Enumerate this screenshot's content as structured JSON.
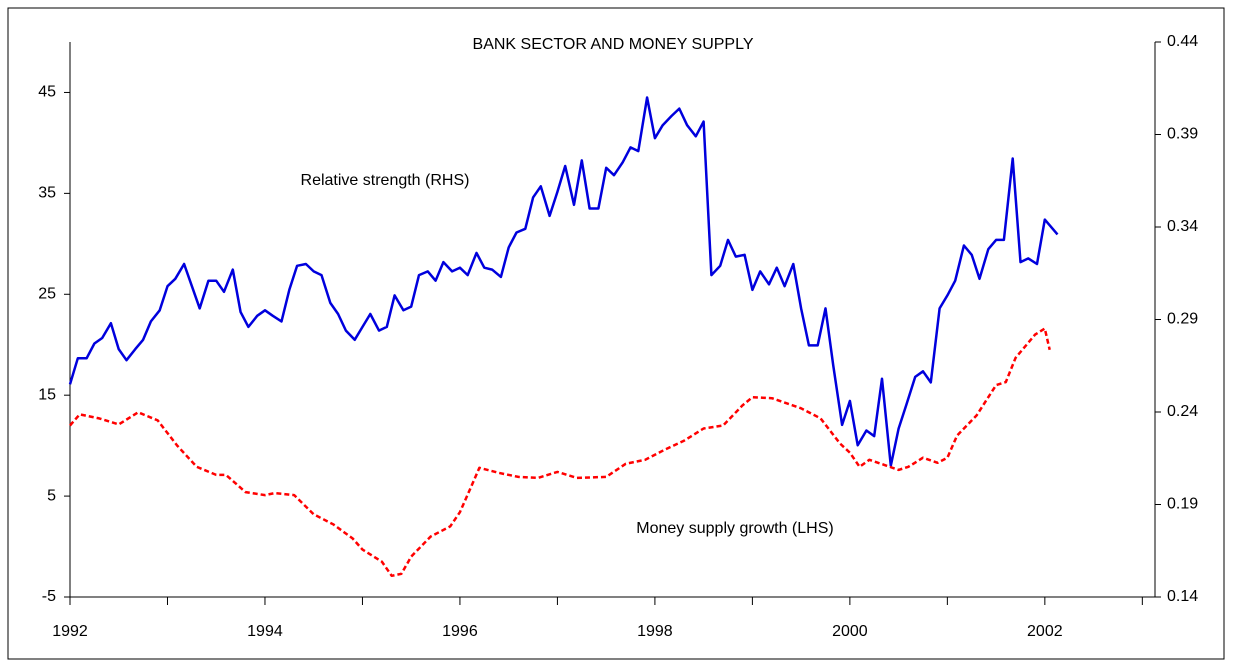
{
  "chart_data": {
    "type": "line",
    "title": "BANK SECTOR AND MONEY SUPPLY",
    "xlim": [
      1992,
      2003.13
    ],
    "xticks": [
      1992,
      1993,
      1994,
      1995,
      1996,
      1997,
      1998,
      1999,
      2000,
      2001,
      2002,
      2003
    ],
    "xticklabels": [
      1992,
      1994,
      1996,
      1998,
      2000,
      2002
    ],
    "ylim": [
      -5,
      50
    ],
    "yticks": [
      -5,
      5,
      15,
      25,
      35,
      45
    ],
    "y2lim": [
      0.14,
      0.44
    ],
    "y2ticks": [
      0.14,
      0.19,
      0.24,
      0.29,
      0.34,
      0.39,
      0.44
    ],
    "series": [
      {
        "name": "Relative strength (RHS)",
        "color": "#0000dd",
        "axis": "y2",
        "x": [
          1992.0,
          1992.08,
          1992.17,
          1992.25,
          1992.33,
          1992.42,
          1992.5,
          1992.58,
          1992.67,
          1992.75,
          1992.83,
          1992.92,
          1993.0,
          1993.08,
          1993.17,
          1993.25,
          1993.33,
          1993.42,
          1993.5,
          1993.58,
          1993.67,
          1993.75,
          1993.83,
          1993.92,
          1994.0,
          1994.08,
          1994.17,
          1994.25,
          1994.33,
          1994.42,
          1994.5,
          1994.58,
          1994.67,
          1994.75,
          1994.83,
          1994.92,
          1995.0,
          1995.08,
          1995.17,
          1995.25,
          1995.33,
          1995.42,
          1995.5,
          1995.58,
          1995.67,
          1995.75,
          1995.83,
          1995.92,
          1996.0,
          1996.08,
          1996.17,
          1996.25,
          1996.33,
          1996.42,
          1996.5,
          1996.58,
          1996.67,
          1996.75,
          1996.83,
          1996.92,
          1997.0,
          1997.08,
          1997.17,
          1997.25,
          1997.33,
          1997.42,
          1997.5,
          1997.58,
          1997.67,
          1997.75,
          1997.83,
          1997.92,
          1998.0,
          1998.08,
          1998.17,
          1998.25,
          1998.33,
          1998.42,
          1998.5,
          1998.58,
          1998.67,
          1998.75,
          1998.83,
          1998.92,
          1999.0,
          1999.08,
          1999.17,
          1999.25,
          1999.33,
          1999.42,
          1999.5,
          1999.58,
          1999.67,
          1999.75,
          1999.83,
          1999.92,
          2000.0,
          2000.08,
          2000.17,
          2000.25,
          2000.33,
          2000.42,
          2000.5,
          2000.58,
          2000.67,
          2000.75,
          2000.83,
          2000.92,
          2001.0,
          2001.08,
          2001.17,
          2001.25,
          2001.33,
          2001.42,
          2001.5,
          2001.58,
          2001.67,
          2001.75,
          2001.83,
          2001.92,
          2002.0,
          2002.13
        ],
        "values": [
          0.255,
          0.269,
          0.269,
          0.277,
          0.28,
          0.288,
          0.274,
          0.268,
          0.274,
          0.279,
          0.289,
          0.295,
          0.308,
          0.312,
          0.32,
          0.308,
          0.296,
          0.311,
          0.311,
          0.305,
          0.317,
          0.294,
          0.286,
          0.292,
          0.295,
          0.292,
          0.289,
          0.306,
          0.319,
          0.32,
          0.316,
          0.314,
          0.299,
          0.293,
          0.284,
          0.279,
          0.286,
          0.293,
          0.284,
          0.286,
          0.303,
          0.295,
          0.297,
          0.314,
          0.316,
          0.311,
          0.321,
          0.316,
          0.318,
          0.314,
          0.326,
          0.318,
          0.317,
          0.313,
          0.329,
          0.337,
          0.339,
          0.356,
          0.362,
          0.346,
          0.359,
          0.373,
          0.352,
          0.376,
          0.35,
          0.35,
          0.372,
          0.368,
          0.375,
          0.383,
          0.381,
          0.41,
          0.388,
          0.395,
          0.4,
          0.404,
          0.395,
          0.389,
          0.397,
          0.314,
          0.319,
          0.333,
          0.324,
          0.325,
          0.306,
          0.316,
          0.309,
          0.318,
          0.308,
          0.32,
          0.296,
          0.276,
          0.276,
          0.296,
          0.265,
          0.233,
          0.246,
          0.222,
          0.23,
          0.227,
          0.258,
          0.211,
          0.231,
          0.244,
          0.259,
          0.262,
          0.256,
          0.296,
          0.303,
          0.311,
          0.33,
          0.325,
          0.312,
          0.328,
          0.333,
          0.333,
          0.377,
          0.321,
          0.323,
          0.32,
          0.344,
          0.336
        ]
      },
      {
        "name": "Money supply growth (LHS)",
        "color": "#ff0000",
        "axis": "y",
        "x": [
          1992.0,
          1992.1,
          1992.3,
          1992.5,
          1992.7,
          1992.9,
          1993.1,
          1993.3,
          1993.5,
          1993.6,
          1993.8,
          1994.0,
          1994.1,
          1994.3,
          1994.5,
          1994.7,
          1994.9,
          1995.0,
          1995.2,
          1995.3,
          1995.4,
          1995.5,
          1995.7,
          1995.9,
          1996.0,
          1996.1,
          1996.2,
          1996.4,
          1996.6,
          1996.8,
          1997.0,
          1997.2,
          1997.5,
          1997.7,
          1997.9,
          1998.1,
          1998.3,
          1998.5,
          1998.7,
          1998.9,
          1999.0,
          1999.2,
          1999.5,
          1999.7,
          1999.9,
          2000.0,
          2000.1,
          2000.2,
          2000.35,
          2000.5,
          2000.6,
          2000.75,
          2000.9,
          2001.0,
          2001.1,
          2001.3,
          2001.5,
          2001.6,
          2001.7,
          2001.9,
          2002.0,
          2002.05
        ],
        "values": [
          12.0,
          13.1,
          12.7,
          12.1,
          13.3,
          12.5,
          10.0,
          7.9,
          7.1,
          7.1,
          5.4,
          5.1,
          5.3,
          5.1,
          3.2,
          2.2,
          0.8,
          -0.3,
          -1.5,
          -2.9,
          -2.7,
          -1.0,
          1.0,
          2.0,
          3.4,
          5.6,
          7.8,
          7.3,
          6.9,
          6.8,
          7.4,
          6.8,
          6.9,
          8.2,
          8.6,
          9.6,
          10.5,
          11.7,
          12.0,
          14.0,
          14.8,
          14.7,
          13.7,
          12.7,
          10.2,
          9.3,
          7.9,
          8.6,
          8.1,
          7.6,
          7.9,
          8.8,
          8.3,
          8.8,
          11.0,
          13.0,
          16.0,
          16.3,
          18.7,
          21.0,
          21.6,
          19.5
        ]
      }
    ]
  }
}
